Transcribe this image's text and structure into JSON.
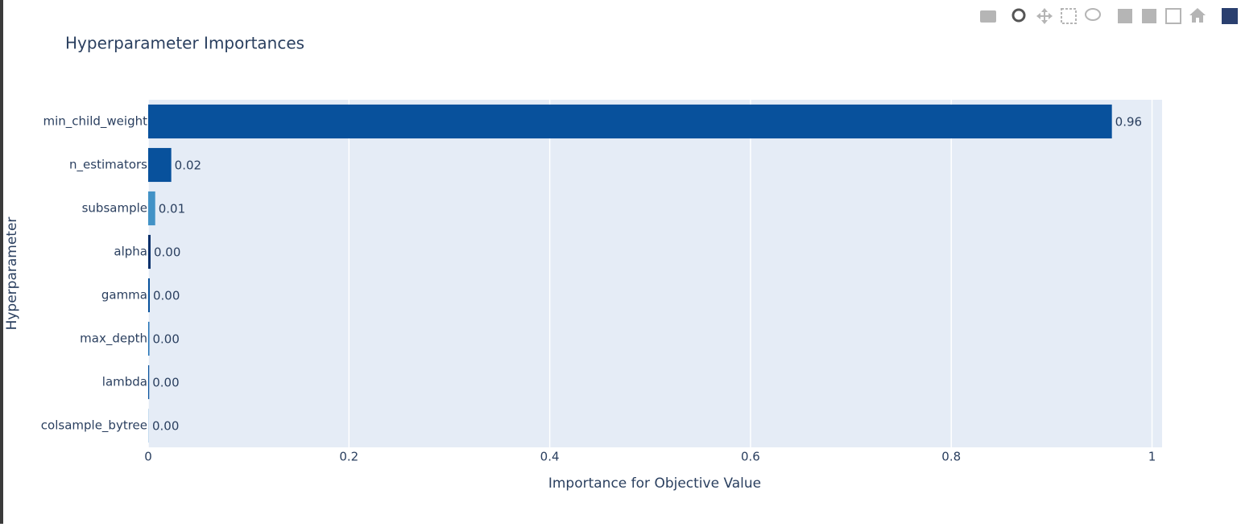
{
  "chart_data": {
    "type": "bar",
    "orientation": "h",
    "title": "Hyperparameter Importances",
    "x_label": "Importance for Objective Value",
    "y_label": "Hyperparameter",
    "categories": [
      "min_child_weight",
      "n_estimators",
      "subsample",
      "alpha",
      "gamma",
      "max_depth",
      "lambda",
      "colsample_bytree"
    ],
    "values": [
      0.96,
      0.023,
      0.007,
      0.0024,
      0.0016,
      0.0012,
      0.001,
      0.0004
    ],
    "value_labels": [
      "0.96",
      "0.02",
      "0.01",
      "0.00",
      "0.00",
      "0.00",
      "0.00",
      "0.00"
    ],
    "colors": [
      "#08519c",
      "#08519c",
      "#4292c6",
      "#08306b",
      "#08519c",
      "#2171b5",
      "#08519c",
      "#c6dbef"
    ],
    "xlim": [
      0,
      1.01
    ],
    "xticks": [
      0,
      0.2,
      0.4,
      0.6,
      0.8,
      1
    ],
    "grid": true
  }
}
